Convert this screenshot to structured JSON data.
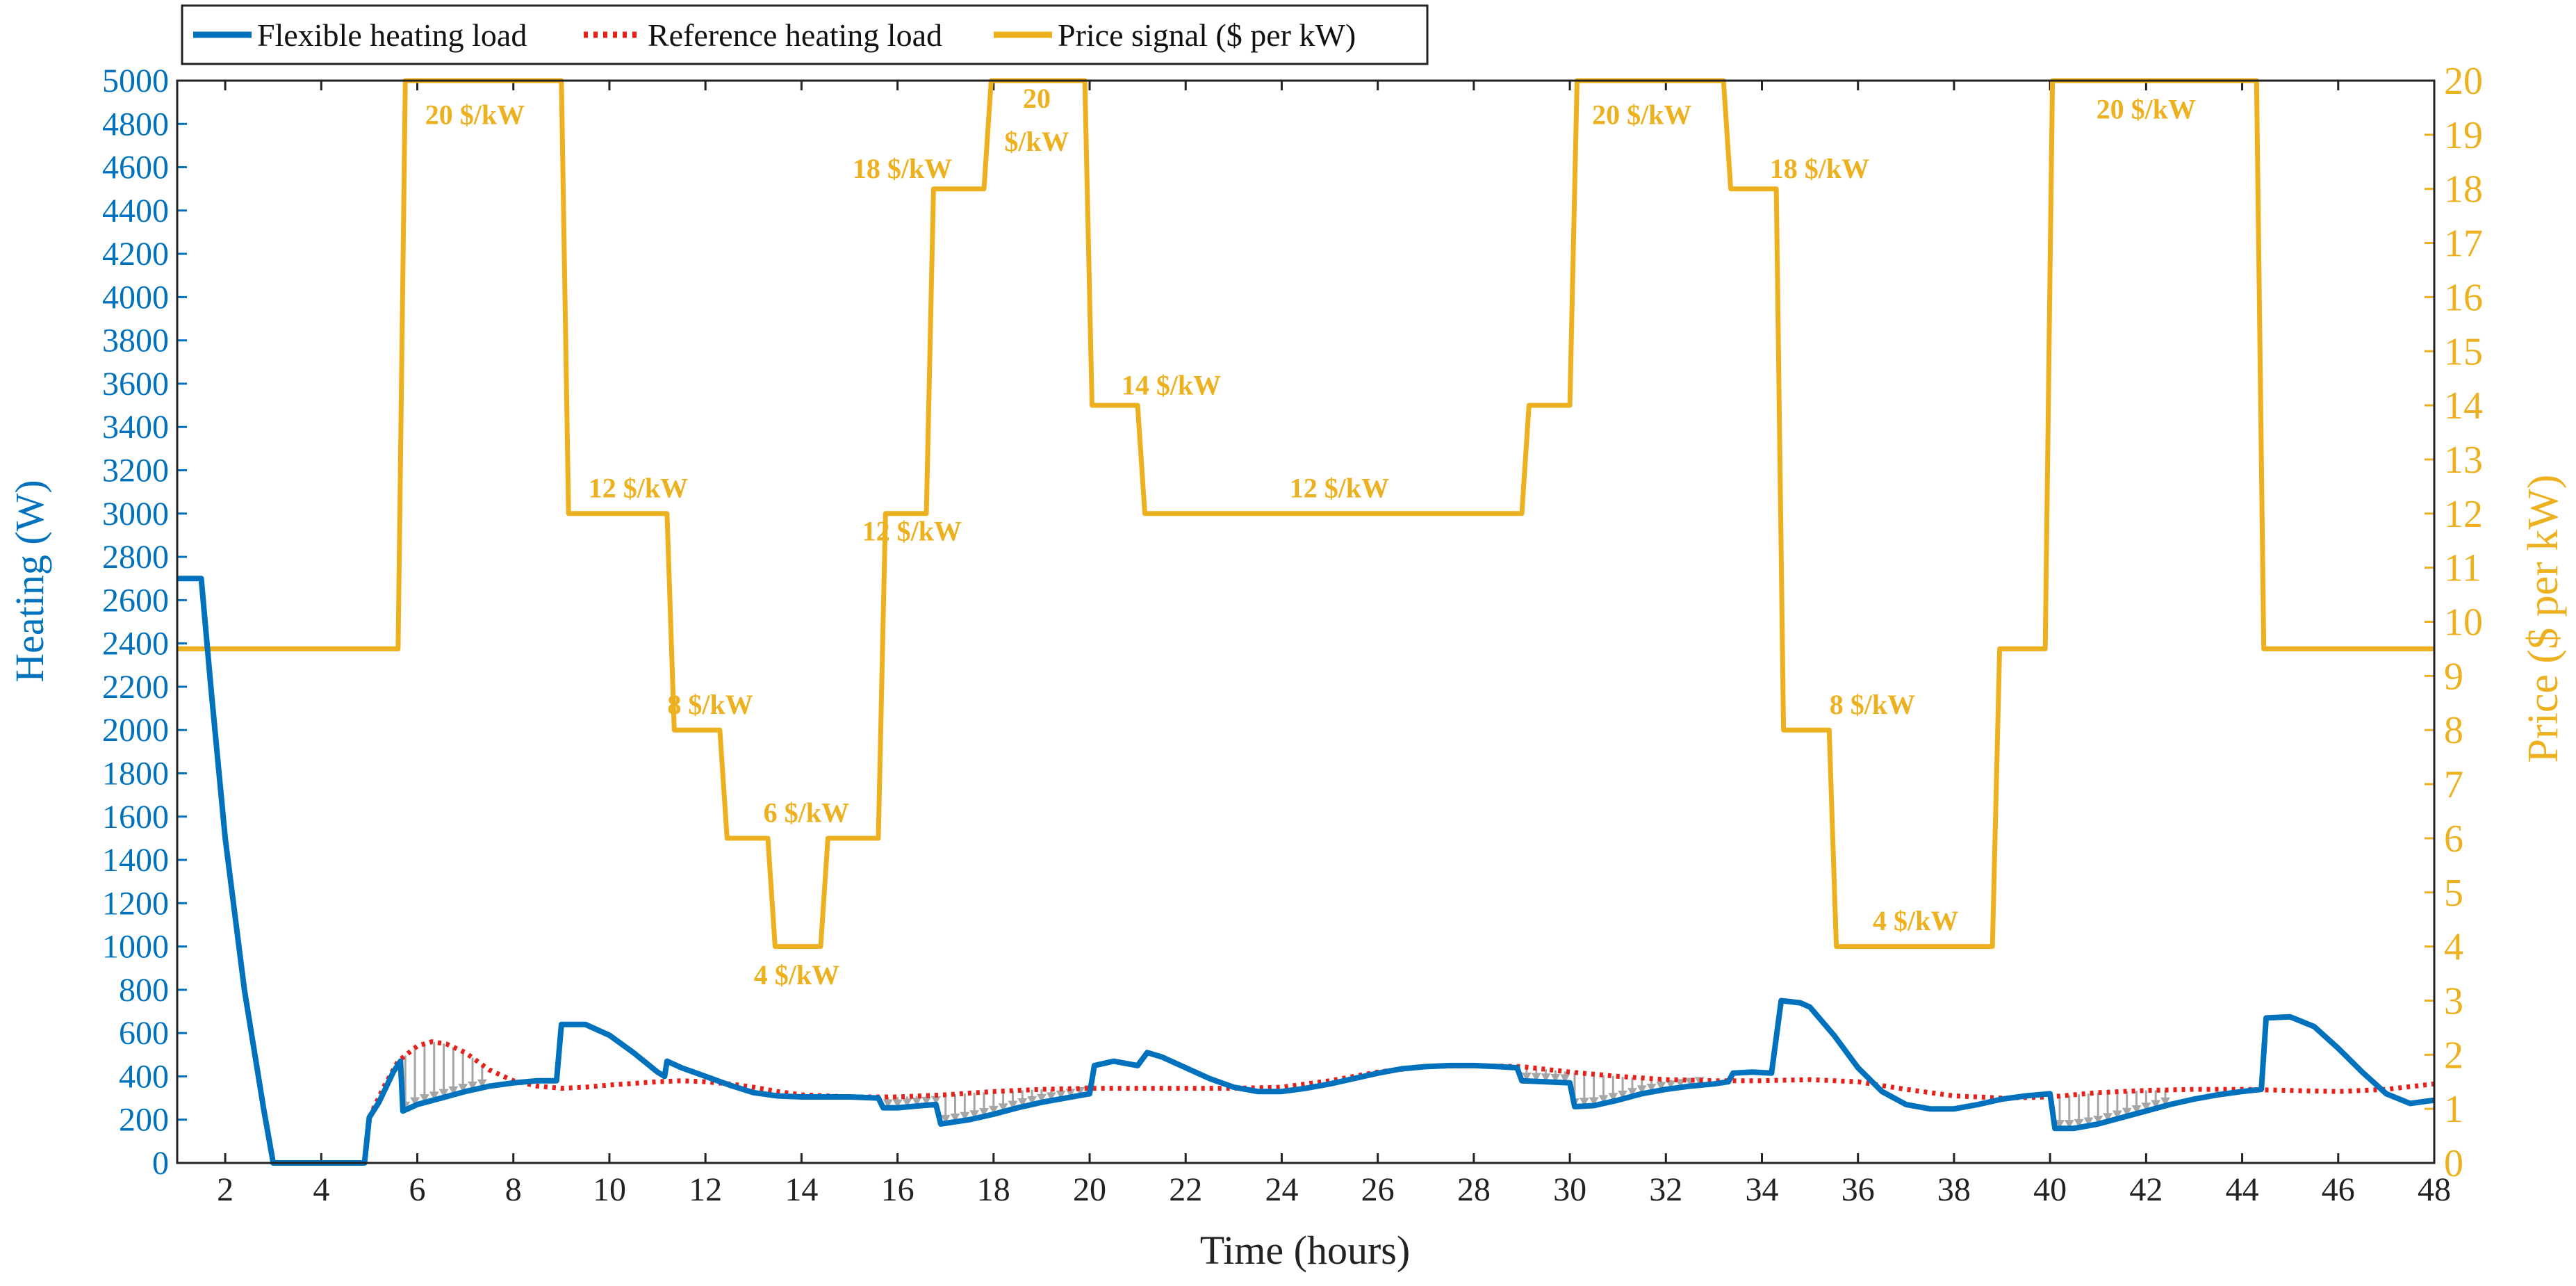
{
  "chart_data": {
    "type": "line",
    "xlabel": "Time (hours)",
    "ylabel_left": "Heating (W)",
    "ylabel_right": "Price ($ per kW)",
    "xlim": [
      1,
      48
    ],
    "ylim_left": [
      0,
      5000
    ],
    "ylim_right": [
      0,
      20
    ],
    "x_ticks": [
      2,
      4,
      6,
      8,
      10,
      12,
      14,
      16,
      18,
      20,
      22,
      24,
      26,
      28,
      30,
      32,
      34,
      36,
      38,
      40,
      42,
      44,
      46,
      48
    ],
    "y_left_ticks": [
      0,
      200,
      400,
      600,
      800,
      1000,
      1200,
      1400,
      1600,
      1800,
      2000,
      2200,
      2400,
      2600,
      2800,
      3000,
      3200,
      3400,
      3600,
      3800,
      4000,
      4200,
      4400,
      4600,
      4800,
      5000
    ],
    "y_right_ticks": [
      0,
      1,
      2,
      3,
      4,
      5,
      6,
      7,
      8,
      9,
      10,
      11,
      12,
      13,
      14,
      15,
      16,
      17,
      18,
      19,
      20
    ],
    "legend": [
      {
        "key": "flexible",
        "label": "Flexible heating load",
        "style": "solid",
        "color": "#0072BD"
      },
      {
        "key": "reference",
        "label": "Reference heating load",
        "style": "dotted",
        "color": "#E8201A"
      },
      {
        "key": "price",
        "label": "Price signal ($ per kW)",
        "style": "solid",
        "color": "#EDB120"
      }
    ],
    "series": [
      {
        "name": "Flexible heating load",
        "axis": "left",
        "color": "#0072BD",
        "points": [
          [
            1,
            2700
          ],
          [
            1.5,
            2700
          ],
          [
            1.7,
            2200
          ],
          [
            2,
            1500
          ],
          [
            2.4,
            800
          ],
          [
            2.8,
            250
          ],
          [
            3,
            0
          ],
          [
            4.9,
            0
          ],
          [
            5,
            210
          ],
          [
            5.2,
            280
          ],
          [
            5.5,
            420
          ],
          [
            5.65,
            470
          ],
          [
            5.7,
            240
          ],
          [
            6,
            270
          ],
          [
            6.5,
            300
          ],
          [
            7,
            330
          ],
          [
            7.5,
            355
          ],
          [
            8,
            370
          ],
          [
            8.5,
            380
          ],
          [
            8.9,
            380
          ],
          [
            9,
            640
          ],
          [
            9.5,
            640
          ],
          [
            10,
            590
          ],
          [
            10.5,
            510
          ],
          [
            11,
            420
          ],
          [
            11.15,
            400
          ],
          [
            11.2,
            470
          ],
          [
            11.5,
            440
          ],
          [
            12,
            400
          ],
          [
            12.5,
            360
          ],
          [
            13,
            325
          ],
          [
            13.5,
            310
          ],
          [
            14,
            305
          ],
          [
            15,
            305
          ],
          [
            15.6,
            300
          ],
          [
            15.7,
            255
          ],
          [
            16,
            255
          ],
          [
            16.5,
            265
          ],
          [
            16.8,
            270
          ],
          [
            16.9,
            180
          ],
          [
            17.5,
            200
          ],
          [
            18,
            225
          ],
          [
            18.5,
            255
          ],
          [
            19,
            280
          ],
          [
            19.5,
            300
          ],
          [
            20,
            320
          ],
          [
            20.1,
            450
          ],
          [
            20.5,
            470
          ],
          [
            21,
            450
          ],
          [
            21.2,
            510
          ],
          [
            21.5,
            490
          ],
          [
            22,
            440
          ],
          [
            22.5,
            390
          ],
          [
            23,
            350
          ],
          [
            23.5,
            330
          ],
          [
            24,
            330
          ],
          [
            24.5,
            345
          ],
          [
            25,
            365
          ],
          [
            25.5,
            390
          ],
          [
            26,
            415
          ],
          [
            26.5,
            435
          ],
          [
            27,
            445
          ],
          [
            27.5,
            450
          ],
          [
            28,
            450
          ],
          [
            28.5,
            445
          ],
          [
            28.9,
            440
          ],
          [
            29,
            380
          ],
          [
            30,
            370
          ],
          [
            30.1,
            260
          ],
          [
            30.5,
            265
          ],
          [
            31,
            290
          ],
          [
            31.5,
            320
          ],
          [
            32,
            340
          ],
          [
            32.5,
            355
          ],
          [
            33,
            365
          ],
          [
            33.3,
            375
          ],
          [
            33.4,
            415
          ],
          [
            33.8,
            420
          ],
          [
            34.2,
            415
          ],
          [
            34.4,
            750
          ],
          [
            34.8,
            740
          ],
          [
            35,
            720
          ],
          [
            35.5,
            590
          ],
          [
            36,
            440
          ],
          [
            36.5,
            330
          ],
          [
            37,
            270
          ],
          [
            37.5,
            250
          ],
          [
            38,
            250
          ],
          [
            38.5,
            270
          ],
          [
            39,
            295
          ],
          [
            39.5,
            310
          ],
          [
            40,
            320
          ],
          [
            40.1,
            160
          ],
          [
            40.5,
            160
          ],
          [
            41,
            180
          ],
          [
            41.5,
            210
          ],
          [
            42,
            240
          ],
          [
            42.5,
            270
          ],
          [
            43,
            295
          ],
          [
            43.5,
            315
          ],
          [
            44,
            330
          ],
          [
            44.4,
            340
          ],
          [
            44.5,
            670
          ],
          [
            45,
            675
          ],
          [
            45.5,
            630
          ],
          [
            46,
            530
          ],
          [
            46.5,
            420
          ],
          [
            47,
            320
          ],
          [
            47.5,
            275
          ],
          [
            48,
            290
          ]
        ]
      },
      {
        "name": "Reference heating load",
        "axis": "left",
        "color": "#E8201A",
        "points": [
          [
            1,
            2700
          ],
          [
            1.5,
            2700
          ],
          [
            1.7,
            2200
          ],
          [
            2,
            1500
          ],
          [
            2.4,
            800
          ],
          [
            2.8,
            250
          ],
          [
            3,
            0
          ],
          [
            4.9,
            0
          ],
          [
            5,
            210
          ],
          [
            5.3,
            350
          ],
          [
            5.6,
            470
          ],
          [
            6,
            540
          ],
          [
            6.3,
            560
          ],
          [
            6.6,
            550
          ],
          [
            7,
            510
          ],
          [
            7.5,
            430
          ],
          [
            8,
            380
          ],
          [
            8.5,
            355
          ],
          [
            9,
            345
          ],
          [
            9.5,
            350
          ],
          [
            10,
            360
          ],
          [
            11,
            375
          ],
          [
            11.5,
            380
          ],
          [
            12,
            375
          ],
          [
            12.5,
            365
          ],
          [
            13,
            350
          ],
          [
            13.5,
            330
          ],
          [
            14,
            315
          ],
          [
            15,
            305
          ],
          [
            16,
            305
          ],
          [
            17,
            315
          ],
          [
            18,
            330
          ],
          [
            19,
            340
          ],
          [
            20,
            345
          ],
          [
            21,
            345
          ],
          [
            22,
            345
          ],
          [
            23,
            345
          ],
          [
            24,
            350
          ],
          [
            25,
            380
          ],
          [
            26,
            420
          ],
          [
            27,
            445
          ],
          [
            28,
            450
          ],
          [
            29,
            445
          ],
          [
            30,
            420
          ],
          [
            31,
            400
          ],
          [
            32,
            385
          ],
          [
            33,
            380
          ],
          [
            34,
            380
          ],
          [
            35,
            385
          ],
          [
            36,
            375
          ],
          [
            37,
            340
          ],
          [
            38,
            310
          ],
          [
            39,
            300
          ],
          [
            40,
            305
          ],
          [
            41,
            325
          ],
          [
            42,
            335
          ],
          [
            43,
            340
          ],
          [
            44,
            340
          ],
          [
            45,
            335
          ],
          [
            46,
            330
          ],
          [
            47,
            340
          ],
          [
            48,
            365
          ]
        ]
      },
      {
        "name": "Price signal ($ per kW)",
        "axis": "right",
        "color": "#EDB120",
        "points": [
          [
            1,
            9.5
          ],
          [
            5.6,
            9.5
          ],
          [
            5.75,
            20
          ],
          [
            9,
            20
          ],
          [
            9.15,
            12
          ],
          [
            11.2,
            12
          ],
          [
            11.35,
            8
          ],
          [
            12.3,
            8
          ],
          [
            12.45,
            6
          ],
          [
            13.3,
            6
          ],
          [
            13.45,
            4
          ],
          [
            14.4,
            4
          ],
          [
            14.55,
            6
          ],
          [
            15.6,
            6
          ],
          [
            15.75,
            12
          ],
          [
            16.6,
            12
          ],
          [
            16.75,
            18
          ],
          [
            17.8,
            18
          ],
          [
            17.95,
            20
          ],
          [
            19.9,
            20
          ],
          [
            20.05,
            14
          ],
          [
            21.0,
            14
          ],
          [
            21.15,
            12
          ],
          [
            29.0,
            12
          ],
          [
            29.15,
            14
          ],
          [
            30.0,
            14
          ],
          [
            30.15,
            20
          ],
          [
            33.2,
            20
          ],
          [
            33.35,
            18
          ],
          [
            34.3,
            18
          ],
          [
            34.45,
            8
          ],
          [
            35.4,
            8
          ],
          [
            35.55,
            4
          ],
          [
            38.8,
            4
          ],
          [
            38.95,
            9.5
          ],
          [
            39.9,
            9.5
          ],
          [
            40.05,
            20
          ],
          [
            44.3,
            20
          ],
          [
            44.45,
            9.5
          ],
          [
            48,
            9.5
          ]
        ]
      }
    ],
    "shift_arrows": [
      {
        "from": 5.65,
        "to": 7.5,
        "direction": "down"
      },
      {
        "from": 15.7,
        "to": 20,
        "direction": "up"
      },
      {
        "from": 29,
        "to": 33.3,
        "direction": "down"
      },
      {
        "from": 40.1,
        "to": 42.6,
        "direction": "up"
      }
    ],
    "annotations": [
      {
        "text": "20 $/kW",
        "x": 7.2,
        "y": 19.2
      },
      {
        "text": "12 $/kW",
        "x": 10.6,
        "y": 12.3
      },
      {
        "text": "8 $/kW",
        "x": 12.1,
        "y": 8.3
      },
      {
        "text": "6 $/kW",
        "x": 14.1,
        "y": 6.3
      },
      {
        "text": "4 $/kW",
        "x": 13.9,
        "y": 3.3
      },
      {
        "text": "12 $/kW",
        "x": 16.3,
        "y": 11.5
      },
      {
        "text": "18 $/kW",
        "x": 16.1,
        "y": 18.2
      },
      {
        "text": "20",
        "x": 18.9,
        "y": 19.5
      },
      {
        "text": "$/kW",
        "x": 18.9,
        "y": 18.7
      },
      {
        "text": "14 $/kW",
        "x": 21.7,
        "y": 14.2
      },
      {
        "text": "12 $/kW",
        "x": 25.2,
        "y": 12.3
      },
      {
        "text": "20 $/kW",
        "x": 31.5,
        "y": 19.2
      },
      {
        "text": "18 $/kW",
        "x": 35.2,
        "y": 18.2
      },
      {
        "text": "8 $/kW",
        "x": 36.3,
        "y": 8.3
      },
      {
        "text": "4 $/kW",
        "x": 37.2,
        "y": 4.3
      },
      {
        "text": "20 $/kW",
        "x": 42.0,
        "y": 19.3
      }
    ]
  }
}
